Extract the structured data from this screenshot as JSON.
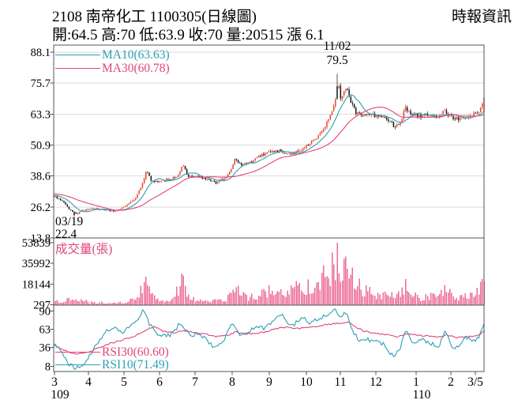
{
  "header": {
    "title": "2108  南帝化工 1100305(日線圖)",
    "source": "時報資訊",
    "quote_line": "開:64.5 高:70 低:63.9 收:70 量:20515 漲 6.1"
  },
  "chart_data": {
    "type": "candlestick+volume+rsi",
    "title": "2108 南帝化工 1100305(日線圖)",
    "x_axis": {
      "month_labels": [
        "3",
        "4",
        "5",
        "6",
        "7",
        "8",
        "9",
        "10",
        "11",
        "12",
        "1",
        "2",
        "3/5"
      ],
      "year_labels": [
        {
          "label": "109",
          "month_index": 0
        },
        {
          "label": "110",
          "month_index": 10
        }
      ],
      "t_range": [
        0,
        12.17
      ]
    },
    "last_trade": {
      "open": 64.5,
      "high": 70,
      "low": 63.9,
      "close": 70,
      "volume": 20515,
      "change_label": "漲 6.1"
    },
    "price_pane": {
      "legend": [
        {
          "label": "MA10(63.63)",
          "color": "#2d9eb5"
        },
        {
          "label": "MA30(60.78)",
          "color": "#e0457b"
        }
      ],
      "y_ticks": [
        88.1,
        75.7,
        63.3,
        50.9,
        38.6,
        26.2,
        13.8
      ],
      "ylim": [
        13.8,
        88.1
      ],
      "up_color": "#e8432d",
      "down_color": "#141414",
      "annotations": [
        {
          "date": "11/02",
          "value": 79.5,
          "t": 8.03,
          "type": "high"
        },
        {
          "date": "03/19",
          "value": 22.4,
          "t": 0.6,
          "type": "low"
        }
      ],
      "close_path": [
        [
          -1.5,
          32.5
        ],
        [
          -0.5,
          31.2
        ],
        [
          0,
          30.6
        ],
        [
          0.25,
          28.8
        ],
        [
          0.45,
          25.2
        ],
        [
          0.63,
          23.4
        ],
        [
          0.8,
          24.6
        ],
        [
          1.1,
          25.6
        ],
        [
          1.45,
          25.0
        ],
        [
          1.75,
          24.6
        ],
        [
          2.05,
          26.8
        ],
        [
          2.3,
          29.5
        ],
        [
          2.5,
          35.0
        ],
        [
          2.62,
          40.8
        ],
        [
          2.78,
          36.3
        ],
        [
          3.0,
          36.6
        ],
        [
          3.3,
          37.2
        ],
        [
          3.55,
          39.0
        ],
        [
          3.66,
          43.2
        ],
        [
          3.78,
          38.6
        ],
        [
          4.0,
          38.4
        ],
        [
          4.35,
          37.6
        ],
        [
          4.6,
          35.9
        ],
        [
          4.85,
          37.8
        ],
        [
          5.02,
          41.0
        ],
        [
          5.12,
          45.2
        ],
        [
          5.3,
          42.6
        ],
        [
          5.55,
          43.8
        ],
        [
          5.8,
          46.5
        ],
        [
          6.1,
          47.8
        ],
        [
          6.4,
          48.6
        ],
        [
          6.65,
          47.2
        ],
        [
          6.9,
          48.2
        ],
        [
          7.15,
          50.5
        ],
        [
          7.4,
          53.5
        ],
        [
          7.65,
          58.0
        ],
        [
          7.85,
          64.0
        ],
        [
          8.0,
          71.5
        ],
        [
          8.05,
          75.2
        ],
        [
          8.12,
          70.0
        ],
        [
          8.2,
          72.0
        ],
        [
          8.3,
          73.8
        ],
        [
          8.42,
          67.5
        ],
        [
          8.55,
          64.0
        ],
        [
          8.75,
          63.2
        ],
        [
          9.0,
          63.0
        ],
        [
          9.3,
          62.2
        ],
        [
          9.5,
          60.5
        ],
        [
          9.65,
          57.8
        ],
        [
          9.8,
          60.0
        ],
        [
          9.95,
          65.8
        ],
        [
          10.1,
          63.0
        ],
        [
          10.35,
          62.5
        ],
        [
          10.6,
          63.2
        ],
        [
          10.85,
          61.8
        ],
        [
          11.05,
          64.6
        ],
        [
          11.25,
          62.0
        ],
        [
          11.45,
          61.2
        ],
        [
          11.7,
          62.6
        ],
        [
          11.95,
          63.5
        ],
        [
          12.05,
          64.0
        ],
        [
          12.17,
          70.0
        ]
      ]
    },
    "volume_pane": {
      "label": "成交量(張)",
      "y_ticks": [
        53839,
        35992,
        18144,
        297
      ],
      "ylim": [
        0,
        53839
      ],
      "color": "#ec6b96",
      "volume_path": [
        [
          -1.5,
          2500
        ],
        [
          0,
          3000
        ],
        [
          0.4,
          4200
        ],
        [
          0.63,
          5200
        ],
        [
          1,
          2600
        ],
        [
          1.5,
          1800
        ],
        [
          2,
          2600
        ],
        [
          2.35,
          5000
        ],
        [
          2.5,
          14000
        ],
        [
          2.62,
          19000
        ],
        [
          2.8,
          9000
        ],
        [
          3,
          4500
        ],
        [
          3.3,
          4000
        ],
        [
          3.55,
          16000
        ],
        [
          3.66,
          23000
        ],
        [
          3.8,
          9000
        ],
        [
          4,
          4200
        ],
        [
          4.3,
          3200
        ],
        [
          4.6,
          3600
        ],
        [
          4.9,
          5200
        ],
        [
          5.05,
          12000
        ],
        [
          5.15,
          14500
        ],
        [
          5.35,
          7500
        ],
        [
          5.6,
          7000
        ],
        [
          5.85,
          9500
        ],
        [
          6.1,
          12000
        ],
        [
          6.35,
          9000
        ],
        [
          6.6,
          12500
        ],
        [
          6.9,
          15000
        ],
        [
          7.15,
          17000
        ],
        [
          7.4,
          19000
        ],
        [
          7.6,
          23000
        ],
        [
          7.8,
          27000
        ],
        [
          7.95,
          34000
        ],
        [
          8.05,
          50000
        ],
        [
          8.15,
          30000
        ],
        [
          8.3,
          36000
        ],
        [
          8.45,
          26000
        ],
        [
          8.6,
          17000
        ],
        [
          8.8,
          12000
        ],
        [
          9.05,
          9000
        ],
        [
          9.3,
          7500
        ],
        [
          9.55,
          9500
        ],
        [
          9.8,
          8000
        ],
        [
          9.95,
          16000
        ],
        [
          10.15,
          8000
        ],
        [
          10.4,
          6000
        ],
        [
          10.65,
          8500
        ],
        [
          10.9,
          7000
        ],
        [
          11.05,
          13500
        ],
        [
          11.3,
          7000
        ],
        [
          11.55,
          6000
        ],
        [
          11.8,
          9000
        ],
        [
          12.0,
          15000
        ],
        [
          12.1,
          13000
        ],
        [
          12.17,
          20515
        ]
      ]
    },
    "rsi_pane": {
      "legend": [
        {
          "label": "RSI30(60.60)",
          "color": "#e0457b"
        },
        {
          "label": "RSI10(71.49)",
          "color": "#2d9eb5"
        }
      ],
      "y_ticks": [
        90,
        63,
        36,
        8
      ],
      "rsi10_path": [
        [
          0,
          42
        ],
        [
          0.2,
          30
        ],
        [
          0.4,
          12
        ],
        [
          0.63,
          5
        ],
        [
          0.8,
          8
        ],
        [
          1.0,
          22
        ],
        [
          1.2,
          40
        ],
        [
          1.5,
          60
        ],
        [
          1.7,
          66
        ],
        [
          1.9,
          58
        ],
        [
          2.1,
          64
        ],
        [
          2.35,
          75
        ],
        [
          2.55,
          93
        ],
        [
          2.7,
          72
        ],
        [
          2.9,
          58
        ],
        [
          3.1,
          52
        ],
        [
          3.35,
          56
        ],
        [
          3.6,
          74
        ],
        [
          3.8,
          56
        ],
        [
          4.0,
          55
        ],
        [
          4.25,
          50
        ],
        [
          4.55,
          36
        ],
        [
          4.8,
          46
        ],
        [
          5.05,
          72
        ],
        [
          5.25,
          56
        ],
        [
          5.5,
          60
        ],
        [
          5.75,
          66
        ],
        [
          6.0,
          64
        ],
        [
          6.2,
          76
        ],
        [
          6.45,
          86
        ],
        [
          6.6,
          74
        ],
        [
          6.8,
          70
        ],
        [
          7.05,
          82
        ],
        [
          7.25,
          72
        ],
        [
          7.5,
          78
        ],
        [
          7.75,
          86
        ],
        [
          7.95,
          93
        ],
        [
          8.1,
          82
        ],
        [
          8.3,
          88
        ],
        [
          8.45,
          60
        ],
        [
          8.65,
          45
        ],
        [
          8.9,
          48
        ],
        [
          9.1,
          44
        ],
        [
          9.35,
          40
        ],
        [
          9.6,
          22
        ],
        [
          9.8,
          35
        ],
        [
          9.95,
          62
        ],
        [
          10.15,
          42
        ],
        [
          10.4,
          50
        ],
        [
          10.65,
          42
        ],
        [
          10.9,
          38
        ],
        [
          11.05,
          60
        ],
        [
          11.3,
          34
        ],
        [
          11.5,
          42
        ],
        [
          11.7,
          52
        ],
        [
          11.9,
          46
        ],
        [
          12.05,
          55
        ],
        [
          12.17,
          71.49
        ]
      ],
      "rsi30_path": [
        [
          0,
          40
        ],
        [
          0.3,
          32
        ],
        [
          0.63,
          26
        ],
        [
          0.9,
          28
        ],
        [
          1.2,
          34
        ],
        [
          1.6,
          42
        ],
        [
          2.0,
          48
        ],
        [
          2.3,
          53
        ],
        [
          2.6,
          62
        ],
        [
          2.85,
          67
        ],
        [
          3.1,
          60
        ],
        [
          3.4,
          58
        ],
        [
          3.7,
          61
        ],
        [
          4.0,
          58
        ],
        [
          4.3,
          56
        ],
        [
          4.6,
          52
        ],
        [
          4.9,
          54
        ],
        [
          5.15,
          59
        ],
        [
          5.4,
          56
        ],
        [
          5.7,
          57
        ],
        [
          6.0,
          59
        ],
        [
          6.3,
          64
        ],
        [
          6.6,
          66
        ],
        [
          6.9,
          64
        ],
        [
          7.2,
          66
        ],
        [
          7.5,
          68
        ],
        [
          7.8,
          71
        ],
        [
          8.1,
          72
        ],
        [
          8.35,
          73
        ],
        [
          8.55,
          66
        ],
        [
          8.8,
          60
        ],
        [
          9.1,
          57
        ],
        [
          9.4,
          55
        ],
        [
          9.7,
          52
        ],
        [
          10.0,
          56
        ],
        [
          10.3,
          54
        ],
        [
          10.6,
          53
        ],
        [
          10.9,
          52
        ],
        [
          11.1,
          55
        ],
        [
          11.4,
          51
        ],
        [
          11.7,
          52
        ],
        [
          12.0,
          54
        ],
        [
          12.17,
          60.6
        ]
      ]
    }
  }
}
